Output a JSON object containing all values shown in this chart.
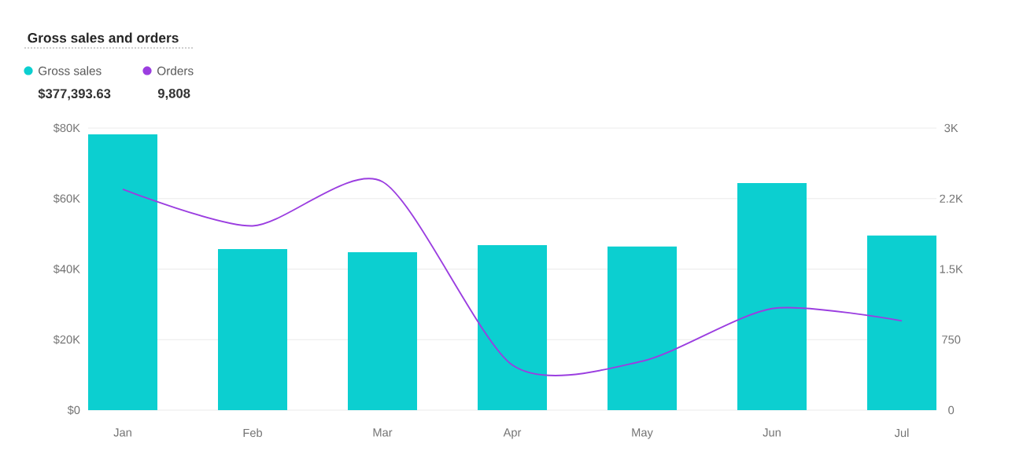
{
  "chart_data": {
    "type": "bar",
    "title": "Gross sales and orders",
    "categories": [
      "Jan",
      "Feb",
      "Mar",
      "Apr",
      "May",
      "Jun",
      "Jul"
    ],
    "series": [
      {
        "name": "Gross sales",
        "color": "#0ccfd0",
        "values": [
          78.2,
          45.7,
          44.8,
          46.8,
          46.4,
          64.4,
          49.5
        ]
      },
      {
        "name": "Orders",
        "type": "line",
        "axis": "y2",
        "color": "#9b3ee0",
        "values": [
          2350,
          1960,
          2430,
          480,
          520,
          1080,
          950
        ]
      }
    ],
    "ylim": [
      0,
      80
    ],
    "yticks": [
      {
        "value": 0,
        "label": "$0"
      },
      {
        "value": 20,
        "label": "$20K"
      },
      {
        "value": 40,
        "label": "$40K"
      },
      {
        "value": 60,
        "label": "$60K"
      },
      {
        "value": 80,
        "label": "$80K"
      }
    ],
    "y2lim": [
      0,
      3000
    ],
    "y2ticks": [
      0,
      750,
      {
        "value": 1500,
        "label": "1.5K"
      },
      {
        "value": 2250,
        "label": "2.2K"
      },
      {
        "value": 3000,
        "label": "3K"
      }
    ],
    "annotations": [
      "$377,393.63",
      "9,808"
    ],
    "grid": "y",
    "legend": "top left"
  }
}
